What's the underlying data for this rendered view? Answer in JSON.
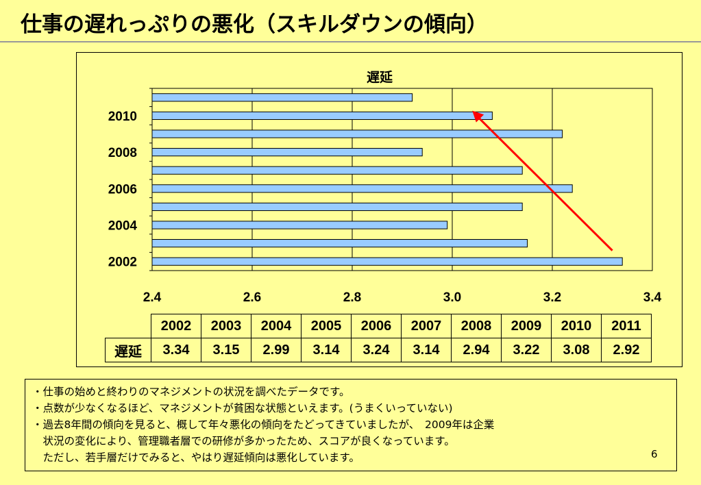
{
  "slide": {
    "title": "仕事の遅れっぷりの悪化（スキルダウンの傾向）",
    "page_number": "6"
  },
  "chart_data": {
    "type": "bar",
    "orientation": "horizontal",
    "title": "遅延",
    "categories": [
      "2002",
      "2003",
      "2004",
      "2005",
      "2006",
      "2007",
      "2008",
      "2009",
      "2010",
      "2011"
    ],
    "series": [
      {
        "name": "遅延",
        "values": [
          3.34,
          3.15,
          2.99,
          3.14,
          3.24,
          3.14,
          2.94,
          3.22,
          3.08,
          2.92
        ]
      }
    ],
    "y_tick_labels": [
      "2002",
      "2004",
      "2006",
      "2008",
      "2010"
    ],
    "x_tick_labels": [
      "2.4",
      "2.6",
      "2.8",
      "3.0",
      "3.2",
      "3.4"
    ],
    "xlim": [
      2.4,
      3.4
    ],
    "grid": "vertical",
    "bar_color": "#99ccff",
    "annotation": {
      "type": "arrow",
      "color": "#ff0000",
      "from": {
        "x": 3.32,
        "category": "2003"
      },
      "to": {
        "x": 3.04,
        "category": "2010"
      }
    }
  },
  "table": {
    "row_label": "遅延",
    "headers": [
      "2002",
      "2003",
      "2004",
      "2005",
      "2006",
      "2007",
      "2008",
      "2009",
      "2010",
      "2011"
    ],
    "values": [
      "3.34",
      "3.15",
      "2.99",
      "3.14",
      "3.24",
      "3.14",
      "2.94",
      "3.22",
      "3.08",
      "2.92"
    ]
  },
  "notes": [
    "・仕事の始めと終わりのマネジメントの状況を調べたデータです。",
    "・点数が少なくなるほど、マネジメントが貧困な状態といえます。(うまくいっていない)",
    "・過去8年間の傾向を見ると、概して年々悪化の傾向をたどってきていましたが、　2009年は企業",
    "　状況の変化により、管理職者層での研修が多かったため、スコアが良くなっています。",
    "　ただし、若手層だけでみると、やはり遅延傾向は悪化しています。"
  ],
  "colors": {
    "background": "#ffff99",
    "bar": "#99ccff",
    "arrow": "#ff0000"
  }
}
